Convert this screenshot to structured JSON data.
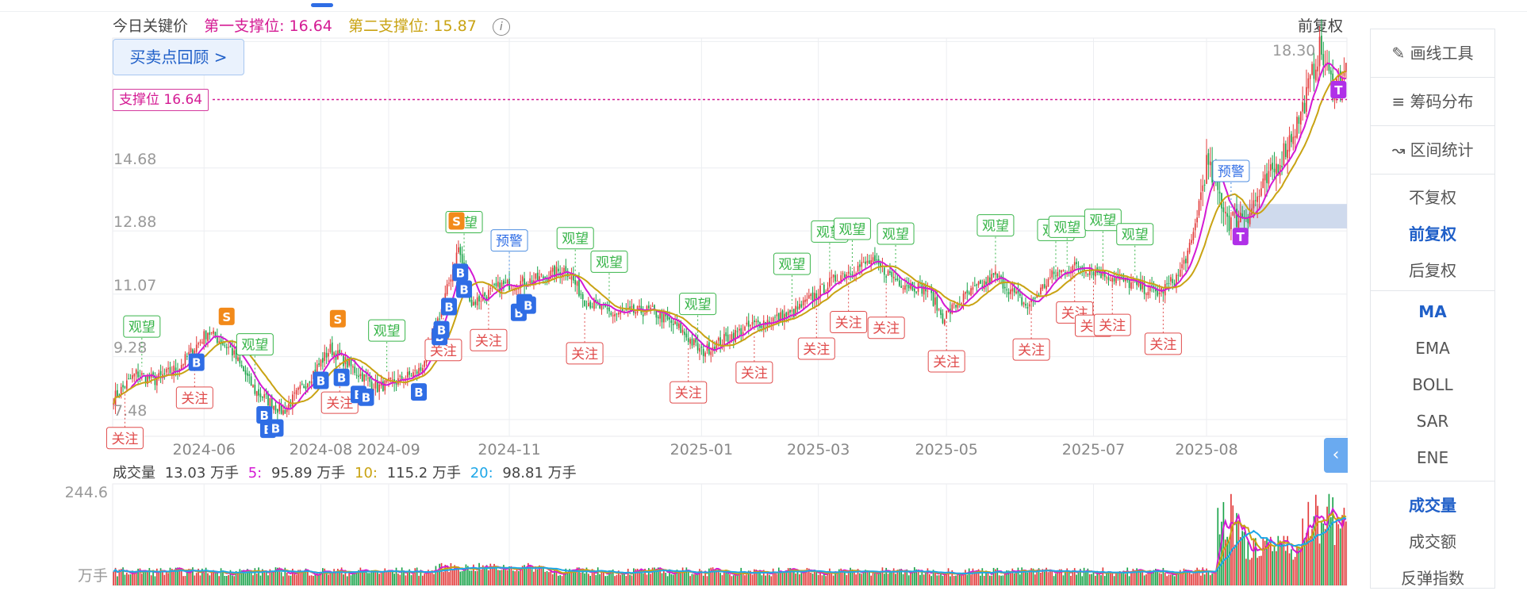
{
  "header": {
    "key_price_label": "今日关键价",
    "support1": "第一支撑位: 16.64",
    "support2": "第二支撑位: 15.87",
    "info_icon": "i",
    "adjust_mode": "前复权"
  },
  "review_button": "买卖点回顾 >",
  "support_line_label": "支撑位 16.64",
  "colors": {
    "up": "#e23b3b",
    "down": "#1aa34a",
    "ma5": "#d41ad4",
    "ma10": "#c9a313",
    "ma20": "#1ea7e8",
    "support": "#d41a93",
    "buy": "#2f6de5",
    "sell": "#f28a1a"
  },
  "volume_legend": {
    "label": "成交量",
    "current": "13.03 万手",
    "ma5_label": "5:",
    "ma5": "95.89 万手",
    "ma10_label": "10:",
    "ma10": "115.2 万手",
    "ma20_label": "20:",
    "ma20": "98.81 万手"
  },
  "right_panel": {
    "tools": [
      "画线工具",
      "筹码分布",
      "区间统计"
    ],
    "tool_icons": [
      "pencil-icon",
      "chip-distribution-icon",
      "range-stat-icon"
    ],
    "adjust": [
      "不复权",
      "前复权",
      "后复权"
    ],
    "adjust_selected": 1,
    "indicators": [
      "MA",
      "EMA",
      "BOLL",
      "SAR",
      "ENE"
    ],
    "indicator_selected": 0,
    "sub_indicators": [
      "成交量",
      "成交额",
      "反弹指数"
    ],
    "sub_selected": 0
  },
  "chart_data": {
    "type": "candlestick",
    "price_axis": {
      "ticks": [
        7.48,
        9.28,
        11.07,
        12.88,
        14.68,
        18.3
      ],
      "tick_labels": [
        "7.48",
        "9.28",
        "11.07",
        "12.88",
        "14.68",
        "18.30"
      ],
      "ylim": [
        7.0,
        18.4
      ]
    },
    "x_tick_labels": [
      "2024-06",
      "2024-08",
      "2024-09",
      "2024-11",
      "2025-01",
      "2025-03",
      "2025-05",
      "2025-07",
      "2025-08"
    ],
    "support_line": 16.64,
    "shaded_zone": [
      12.95,
      13.65
    ],
    "close_anchors": [
      [
        0,
        8.1
      ],
      [
        12,
        8.8
      ],
      [
        22,
        8.6
      ],
      [
        35,
        9.0
      ],
      [
        50,
        10.0
      ],
      [
        62,
        9.5
      ],
      [
        75,
        8.3
      ],
      [
        90,
        7.7
      ],
      [
        103,
        8.6
      ],
      [
        115,
        9.5
      ],
      [
        130,
        8.8
      ],
      [
        140,
        8.4
      ],
      [
        152,
        8.6
      ],
      [
        163,
        8.9
      ],
      [
        175,
        10.8
      ],
      [
        183,
        12.4
      ],
      [
        190,
        10.8
      ],
      [
        205,
        11.3
      ],
      [
        225,
        11.5
      ],
      [
        240,
        11.8
      ],
      [
        250,
        10.9
      ],
      [
        265,
        10.5
      ],
      [
        285,
        10.6
      ],
      [
        300,
        10.1
      ],
      [
        312,
        9.4
      ],
      [
        325,
        9.8
      ],
      [
        340,
        10.2
      ],
      [
        360,
        10.5
      ],
      [
        385,
        11.6
      ],
      [
        402,
        12.0
      ],
      [
        418,
        11.4
      ],
      [
        432,
        11.2
      ],
      [
        440,
        10.4
      ],
      [
        452,
        11.0
      ],
      [
        468,
        11.6
      ],
      [
        485,
        10.7
      ],
      [
        498,
        11.6
      ],
      [
        512,
        11.9
      ],
      [
        528,
        11.6
      ],
      [
        543,
        11.3
      ],
      [
        555,
        11.1
      ],
      [
        565,
        11.6
      ],
      [
        572,
        12.5
      ],
      [
        580,
        14.8
      ],
      [
        592,
        13.2
      ],
      [
        602,
        13.4
      ],
      [
        618,
        14.8
      ],
      [
        630,
        16.2
      ],
      [
        640,
        18.1
      ],
      [
        647,
        17.0
      ],
      [
        653,
        17.5
      ]
    ],
    "volume": {
      "axis_labels": [
        "244.6",
        "万手"
      ],
      "max": 244.6
    },
    "signals": [
      {
        "kind": "label",
        "text": "观望",
        "at": 15,
        "style": "green"
      },
      {
        "kind": "label",
        "text": "关注",
        "at": 6,
        "style": "red"
      },
      {
        "kind": "label",
        "text": "关注",
        "at": 43,
        "style": "red"
      },
      {
        "kind": "label",
        "text": "观望",
        "at": 75,
        "style": "green"
      },
      {
        "kind": "label",
        "text": "关注",
        "at": 120,
        "style": "red"
      },
      {
        "kind": "label",
        "text": "观望",
        "at": 145,
        "style": "green"
      },
      {
        "kind": "label",
        "text": "关注",
        "at": 175,
        "style": "red"
      },
      {
        "kind": "label",
        "text": "关注",
        "at": 199,
        "style": "red"
      },
      {
        "kind": "label",
        "text": "观望",
        "at": 186,
        "style": "green"
      },
      {
        "kind": "label",
        "text": "预警",
        "at": 210,
        "style": "blue"
      },
      {
        "kind": "label",
        "text": "观望",
        "at": 245,
        "style": "green"
      },
      {
        "kind": "label",
        "text": "观望",
        "at": 263,
        "style": "green"
      },
      {
        "kind": "label",
        "text": "关注",
        "at": 250,
        "style": "red"
      },
      {
        "kind": "label",
        "text": "关注",
        "at": 305,
        "style": "red"
      },
      {
        "kind": "label",
        "text": "观望",
        "at": 310,
        "style": "green"
      },
      {
        "kind": "label",
        "text": "关注",
        "at": 340,
        "style": "red"
      },
      {
        "kind": "label",
        "text": "观望",
        "at": 360,
        "style": "green"
      },
      {
        "kind": "label",
        "text": "关注",
        "at": 373,
        "style": "red"
      },
      {
        "kind": "label",
        "text": "观望",
        "at": 380,
        "style": "green"
      },
      {
        "kind": "label",
        "text": "关注",
        "at": 390,
        "style": "red"
      },
      {
        "kind": "label",
        "text": "观望",
        "at": 392,
        "style": "green"
      },
      {
        "kind": "label",
        "text": "关注",
        "at": 410,
        "style": "red"
      },
      {
        "kind": "label",
        "text": "观望",
        "at": 415,
        "style": "green"
      },
      {
        "kind": "label",
        "text": "关注",
        "at": 442,
        "style": "red"
      },
      {
        "kind": "label",
        "text": "观望",
        "at": 468,
        "style": "green"
      },
      {
        "kind": "label",
        "text": "关注",
        "at": 487,
        "style": "red"
      },
      {
        "kind": "label",
        "text": "观望",
        "at": 500,
        "style": "green"
      },
      {
        "kind": "label",
        "text": "关注",
        "at": 510,
        "style": "red"
      },
      {
        "kind": "label",
        "text": "观望",
        "at": 506,
        "style": "green"
      },
      {
        "kind": "label",
        "text": "关注",
        "at": 520,
        "style": "red"
      },
      {
        "kind": "label",
        "text": "关注",
        "at": 530,
        "style": "red"
      },
      {
        "kind": "label",
        "text": "观望",
        "at": 525,
        "style": "green"
      },
      {
        "kind": "label",
        "text": "观望",
        "at": 542,
        "style": "green"
      },
      {
        "kind": "label",
        "text": "关注",
        "at": 557,
        "style": "red"
      },
      {
        "kind": "label",
        "text": "预警",
        "at": 593,
        "style": "blue"
      }
    ],
    "badges": [
      {
        "text": "S",
        "at": 60,
        "style": "sell"
      },
      {
        "text": "S",
        "at": 119,
        "style": "sell"
      },
      {
        "text": "S",
        "at": 182,
        "style": "sell"
      },
      {
        "text": "B",
        "at": 44,
        "style": "buy"
      },
      {
        "text": "B",
        "at": 80,
        "style": "buy"
      },
      {
        "text": "B",
        "at": 82,
        "style": "buy"
      },
      {
        "text": "B",
        "at": 86,
        "style": "buy"
      },
      {
        "text": "B",
        "at": 110,
        "style": "buy"
      },
      {
        "text": "B",
        "at": 121,
        "style": "buy"
      },
      {
        "text": "B",
        "at": 130,
        "style": "buy"
      },
      {
        "text": "B",
        "at": 134,
        "style": "buy"
      },
      {
        "text": "B",
        "at": 162,
        "style": "buy"
      },
      {
        "text": "B",
        "at": 173,
        "style": "buy"
      },
      {
        "text": "B",
        "at": 174,
        "style": "buy"
      },
      {
        "text": "B",
        "at": 178,
        "style": "buy"
      },
      {
        "text": "B",
        "at": 184,
        "style": "buy"
      },
      {
        "text": "B",
        "at": 186,
        "style": "buy"
      },
      {
        "text": "B",
        "at": 215,
        "style": "buy"
      },
      {
        "text": "B",
        "at": 218,
        "style": "buy"
      },
      {
        "text": "B",
        "at": 220,
        "style": "buy"
      },
      {
        "text": "T",
        "at": 598,
        "style": "t"
      },
      {
        "text": "T",
        "at": 650,
        "style": "t"
      }
    ]
  }
}
